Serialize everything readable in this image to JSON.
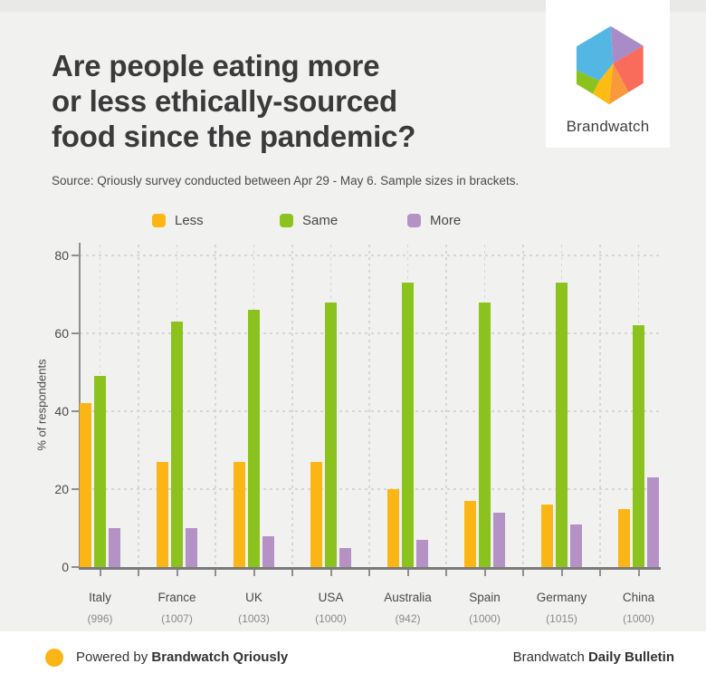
{
  "page": {
    "title_lines": [
      "Are people eating more",
      "or less ethically-sourced",
      "food since the pandemic?"
    ],
    "source_note": "Source: Qriously survey conducted between Apr 29 - May 6. Sample sizes in brackets.",
    "logo": {
      "text": "Brandwatch"
    },
    "footer": {
      "left_prefix": "Powered by ",
      "left_bold": "Brandwatch Qriously",
      "right_prefix": "Brandwatch ",
      "right_bold": "Daily Bulletin",
      "dot_color": "#FBB616"
    }
  },
  "colors": {
    "background": "#f1f1f0",
    "card_white": "#ffffff",
    "logo": {
      "blue": "#54B7E3",
      "purple": "#A98BC8",
      "coral": "#F96B5B",
      "orange": "#F89A3B",
      "yellow": "#FCBC13",
      "green": "#8CC21E"
    }
  },
  "chart_data": {
    "type": "bar",
    "title": "Are people eating more or less ethically-sourced food since the pandemic?",
    "categories": [
      "Italy",
      "France",
      "UK",
      "USA",
      "Australia",
      "Spain",
      "Germany",
      "China"
    ],
    "sample_sizes": [
      "(996)",
      "(1007)",
      "(1003)",
      "(1000)",
      "(942)",
      "(1000)",
      "(1015)",
      "(1000)"
    ],
    "series": [
      {
        "name": "Less",
        "color": "#FBB616",
        "values": [
          42,
          27,
          27,
          27,
          20,
          17,
          16,
          15
        ]
      },
      {
        "name": "Same",
        "color": "#8CC21D",
        "values": [
          49,
          63,
          66,
          68,
          73,
          68,
          73,
          62
        ]
      },
      {
        "name": "More",
        "color": "#B592C5",
        "values": [
          10,
          10,
          8,
          5,
          7,
          14,
          11,
          23
        ]
      }
    ],
    "xlabel": "",
    "ylabel": "% of respondents",
    "yticks": [
      0,
      20,
      40,
      60,
      80
    ],
    "ylim": [
      0,
      83
    ],
    "grid": "dashed horizontal and vertical",
    "legend_position": "top"
  }
}
